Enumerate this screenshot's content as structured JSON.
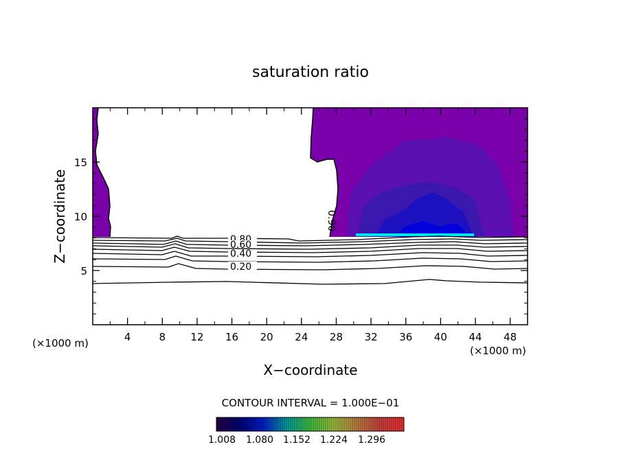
{
  "chart_data": {
    "type": "contour",
    "title": "saturation ratio",
    "xlabel": "X−coordinate",
    "ylabel": "Z−coordinate",
    "x_unit_left": "(×1000 m)",
    "x_unit_right": "(×1000 m)",
    "xlim": [
      0,
      50
    ],
    "ylim": [
      0,
      20
    ],
    "xticks": [
      4,
      8,
      12,
      16,
      20,
      24,
      28,
      32,
      36,
      40,
      44,
      48
    ],
    "yticks": [
      5,
      10,
      15
    ],
    "contour_labels": [
      {
        "text": "0.80",
        "x": 17,
        "z": 8.1
      },
      {
        "text": "0.60",
        "x": 17,
        "z": 7.5
      },
      {
        "text": "0.40",
        "x": 17,
        "z": 6.5
      },
      {
        "text": "0.20",
        "x": 17,
        "z": 5.4
      },
      {
        "text": "0.90",
        "x": 27.6,
        "z": 10
      }
    ],
    "contour_interval_text": "CONTOUR INTERVAL = 1.000E−01",
    "colorbar": {
      "tick_labels": [
        "1.008",
        "1.080",
        "1.152",
        "1.224",
        "1.296"
      ],
      "stops": [
        "#2a0044",
        "#00007a",
        "#0020d0",
        "#00a0a0",
        "#40c040",
        "#a0c040",
        "#c08040",
        "#d04040",
        "#f03030"
      ]
    },
    "fill_colors": {
      "supersat_base": "#7a00aa",
      "level_2": "#5a10b0",
      "level_3": "#3a18b0",
      "level_4": "#1c10c0",
      "level_5": "#0000dd",
      "cyan_band": "#00e8ee"
    }
  }
}
